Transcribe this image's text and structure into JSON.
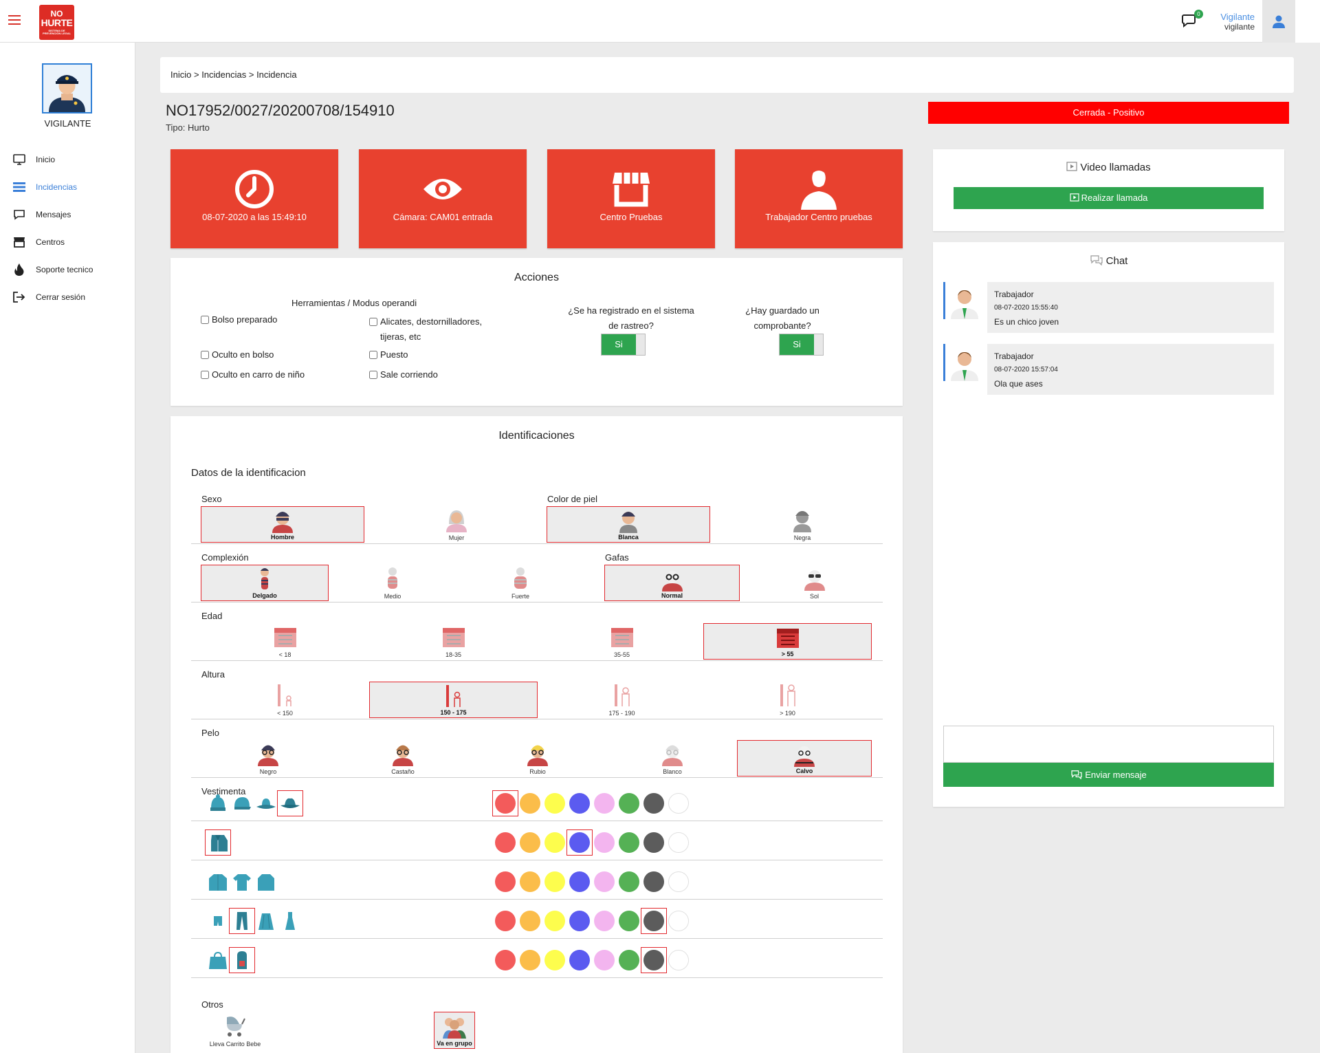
{
  "app": {
    "menu_icon": "hamburger-icon",
    "logo_line1": "NO",
    "logo_line2": "HURTE",
    "logo_line3": "SISTEMA DE PREVENCIÓN LEGAL",
    "notifications_count": "0",
    "user_name": "Vigilante",
    "user_role": "vigilante"
  },
  "sidebar": {
    "profile_label": "VIGILANTE",
    "items": [
      {
        "label": "Inicio",
        "icon": "monitor-icon"
      },
      {
        "label": "Incidencias",
        "icon": "list-icon",
        "active": true
      },
      {
        "label": "Mensajes",
        "icon": "chat-bubble-icon"
      },
      {
        "label": "Centros",
        "icon": "store-icon"
      },
      {
        "label": "Soporte tecnico",
        "icon": "fire-icon"
      },
      {
        "label": "Cerrar sesión",
        "icon": "logout-icon"
      }
    ]
  },
  "breadcrumb": {
    "home": "Inicio",
    "sep1": " > ",
    "list": "Incidencias",
    "sep2": " > ",
    "current": "Incidencia"
  },
  "incident": {
    "id": "NO17952/0027/20200708/154910",
    "type": "Tipo: Hurto",
    "status": "Cerrada - Positivo",
    "status_color": "#ff0000"
  },
  "tiles": [
    {
      "label": "08-07-2020 a las 15:49:10",
      "icon": "clock-icon"
    },
    {
      "label": "Cámara: CAM01 entrada",
      "icon": "eye-icon"
    },
    {
      "label": "Centro Pruebas",
      "icon": "store-icon"
    },
    {
      "label": "Trabajador Centro pruebas",
      "icon": "person-icon"
    }
  ],
  "acciones": {
    "title": "Acciones",
    "tools_title": "Herramientas / Modus operandi",
    "checkboxes": {
      "bolso": "Bolso preparado",
      "alicates": "Alicates, destornilladores,",
      "alicates2": "tijeras, etc",
      "oculto_bolso": "Oculto en bolso",
      "puesto": "Puesto",
      "oculto_carro": "Oculto en carro de niño",
      "sale": "Sale corriendo"
    },
    "q1_line1": "¿Se ha registrado en el sistema",
    "q1_line2": "de rastreo?",
    "q1_value": "Si",
    "q2_line1": "¿Hay guardado un",
    "q2_line2": "comprobante?",
    "q2_value": "Si"
  },
  "identificaciones": {
    "title": "Identificaciones",
    "subtitle": "Datos de la identificacion",
    "sexo": {
      "label": "Sexo",
      "options": [
        "Hombre",
        "Mujer"
      ],
      "selected": "Hombre"
    },
    "piel": {
      "label": "Color de piel",
      "options": [
        "Blanca",
        "Negra"
      ],
      "selected": "Blanca"
    },
    "complexion": {
      "label": "Complexión",
      "options": [
        "Delgado",
        "Medio",
        "Fuerte"
      ],
      "selected": "Delgado"
    },
    "gafas": {
      "label": "Gafas",
      "options": [
        "Normal",
        "Sol"
      ],
      "selected": "Normal"
    },
    "edad": {
      "label": "Edad",
      "options": [
        "< 18",
        "18-35",
        "35-55",
        "> 55"
      ],
      "selected": "> 55"
    },
    "altura": {
      "label": "Altura",
      "options": [
        "< 150",
        "150 - 175",
        "175 - 190",
        "> 190"
      ],
      "selected": "150 - 175"
    },
    "pelo": {
      "label": "Pelo",
      "options": [
        "Negro",
        "Castaño",
        "Rubio",
        "Blanco",
        "Calvo"
      ],
      "selected": "Calvo"
    },
    "vestimenta": {
      "label": "Vestimenta",
      "colors": [
        "#f35b5b",
        "#fbbd4a",
        "#fdfd4d",
        "#5b5bf0",
        "#f3b5ef",
        "#55b155",
        "#5c5c5c",
        "#ffffff"
      ],
      "rows": [
        {
          "items": [
            "beanie-icon",
            "cap-icon",
            "bucket-hat-icon",
            "fedora-icon"
          ],
          "selected_item": 3,
          "selected_color": 0
        },
        {
          "items": [
            "jacket-icon"
          ],
          "selected_item": 0,
          "selected_color": 3
        },
        {
          "items": [
            "sweater-icon",
            "tshirt-icon",
            "long-sleeve-icon"
          ],
          "selected_item": null,
          "selected_color": null
        },
        {
          "items": [
            "shorts-icon",
            "trousers-icon",
            "skirt-icon",
            "dress-icon"
          ],
          "selected_item": 1,
          "selected_color": 6
        },
        {
          "items": [
            "handbag-icon",
            "backpack-icon"
          ],
          "selected_item": 1,
          "selected_color": 6
        }
      ]
    },
    "otros": {
      "label": "Otros",
      "options": [
        "Lleva Carrito Bebe",
        "Va en grupo"
      ],
      "selected": "Va en grupo"
    }
  },
  "video": {
    "title": "Video llamadas",
    "button": "Realizar llamada"
  },
  "chat": {
    "title": "Chat",
    "messages": [
      {
        "author": "Trabajador",
        "time": "08-07-2020 15:55:40",
        "text": "Es un chico joven"
      },
      {
        "author": "Trabajador",
        "time": "08-07-2020 15:57:04",
        "text": "Ola que ases"
      }
    ],
    "input_value": "",
    "send_button": "Enviar mensaje"
  }
}
